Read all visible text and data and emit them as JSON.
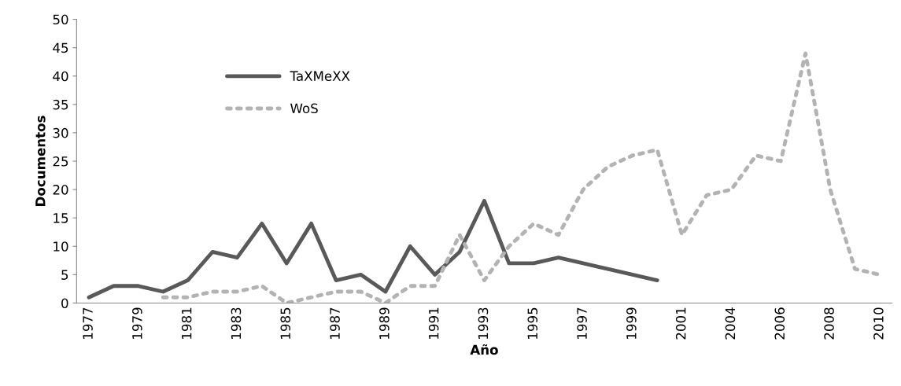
{
  "chart_data": {
    "type": "line",
    "xlabel": "Año",
    "ylabel": "Documentos",
    "categories": [
      "1977",
      null,
      "1979",
      null,
      "1981",
      null,
      "1983",
      null,
      "1985",
      null,
      "1987",
      null,
      "1989",
      null,
      "1991",
      null,
      "1993",
      null,
      "1995",
      null,
      "1997",
      null,
      "1999",
      null,
      "2001",
      null,
      "2004",
      null,
      "2006",
      null,
      "2008",
      null,
      "2010"
    ],
    "series": [
      {
        "name": "TaXMeXX",
        "color": "#595959",
        "line_style": "solid",
        "values": [
          1,
          3,
          3,
          2,
          4,
          9,
          8,
          14,
          7,
          14,
          4,
          5,
          2,
          10,
          5,
          9,
          18,
          7,
          7,
          8,
          7,
          6,
          5,
          4,
          null,
          null,
          null,
          null,
          null,
          null,
          null,
          null,
          null
        ]
      },
      {
        "name": "WoS",
        "color": "#b3b3b3",
        "line_style": "dotted",
        "values": [
          null,
          null,
          null,
          1,
          1,
          2,
          2,
          3,
          0,
          1,
          2,
          2,
          0,
          3,
          3,
          12,
          4,
          10,
          14,
          12,
          20,
          24,
          26,
          27,
          12,
          19,
          20,
          26,
          25,
          44,
          20,
          6,
          5
        ]
      }
    ],
    "ylim": [
      0,
      50
    ],
    "yticks": [
      0,
      5,
      10,
      15,
      20,
      25,
      30,
      35,
      40,
      45,
      50
    ],
    "grid": false,
    "legend": "top left",
    "marker": "none"
  }
}
